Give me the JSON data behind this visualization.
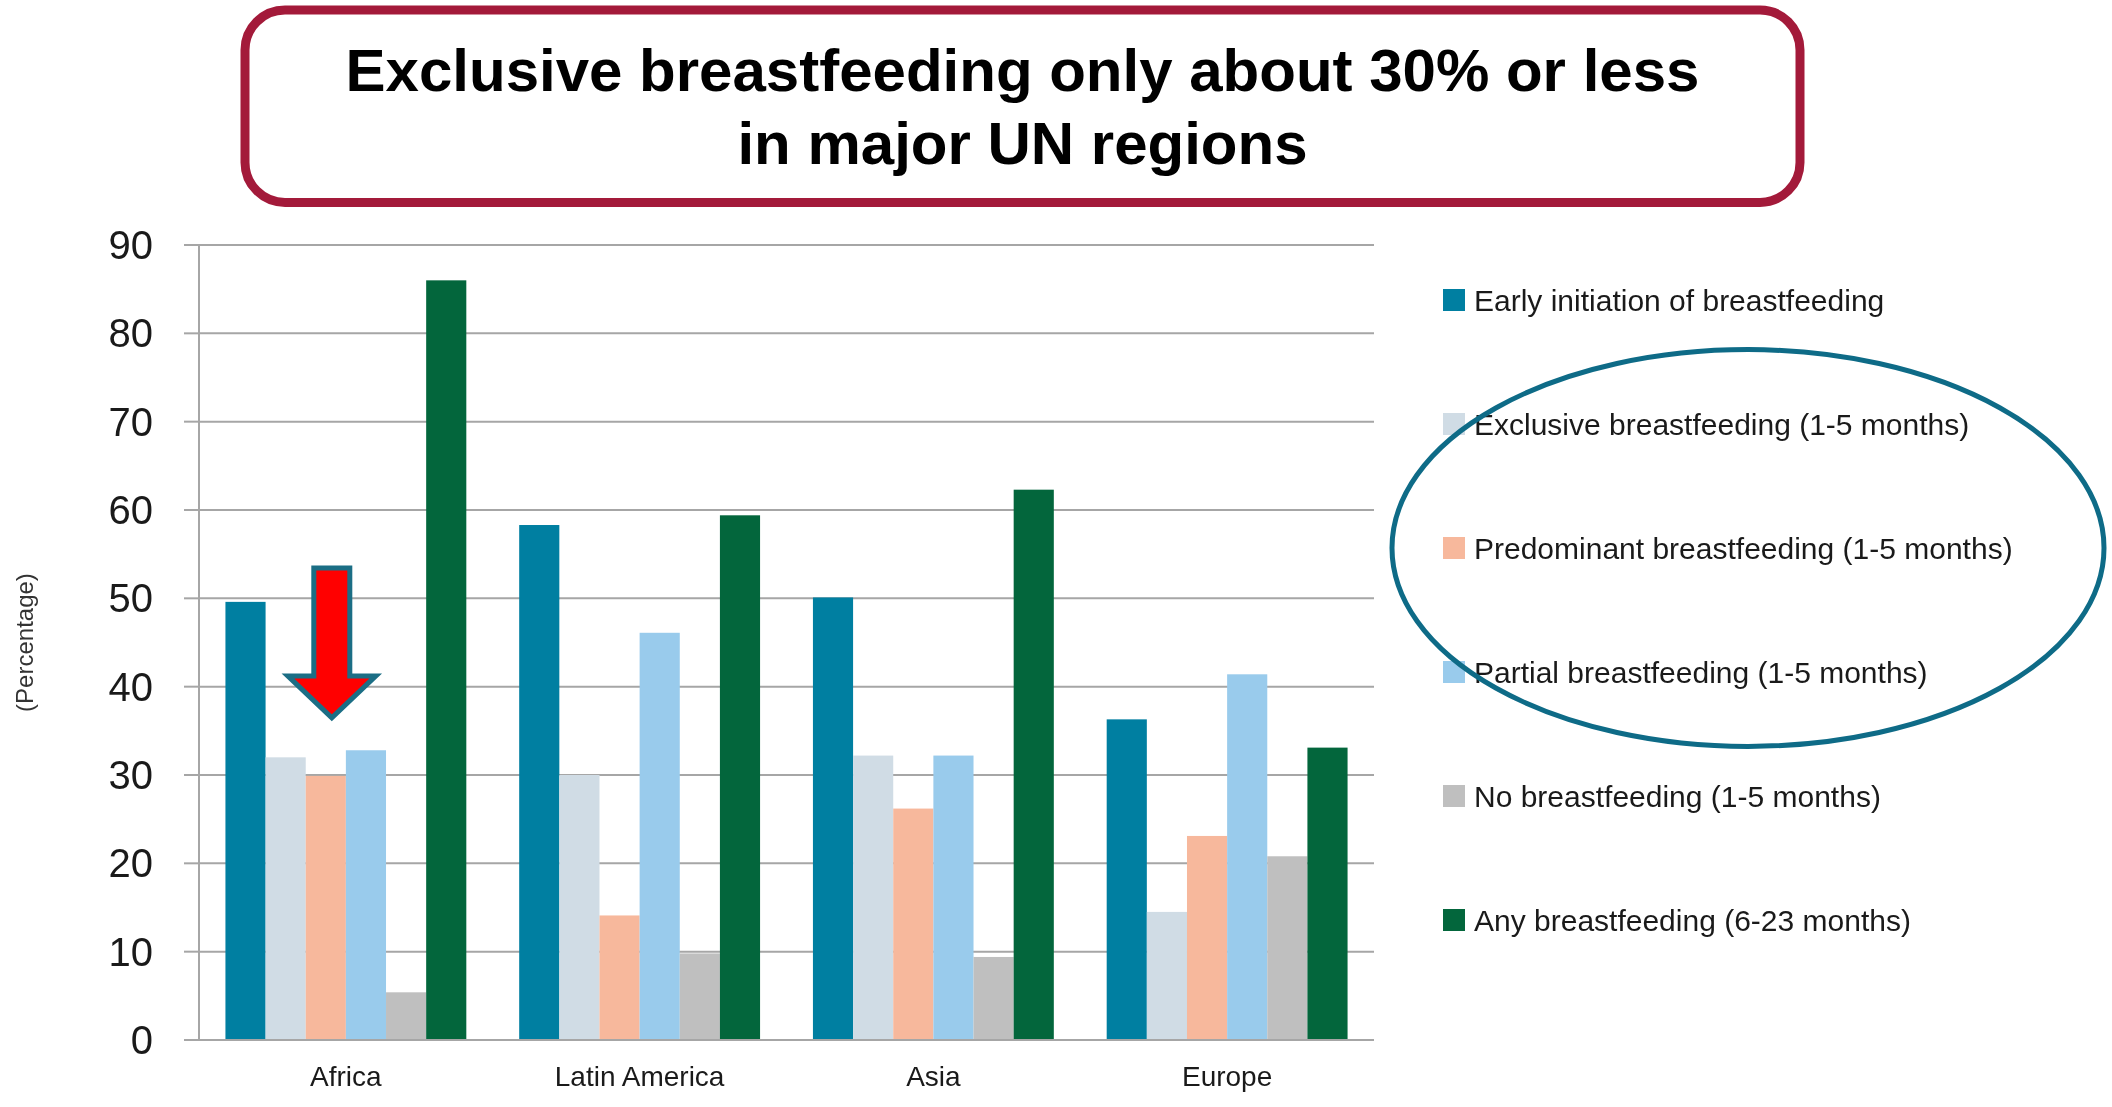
{
  "chart_data": {
    "type": "bar",
    "title": "Exclusive breastfeeding only about 30% or less in major UN regions",
    "ylabel": "(Percentage)",
    "categories": [
      "Africa",
      "Latin America",
      "Asia",
      "Europe"
    ],
    "series": [
      {
        "name": "Early initiation of breastfeeding",
        "color": "#007fa1",
        "values": [
          49.6,
          58.3,
          50.1,
          36.3
        ]
      },
      {
        "name": "Exclusive breastfeeding (1-5 months)",
        "color": "#d0dce5",
        "values": [
          32.0,
          30.0,
          32.2,
          14.5
        ]
      },
      {
        "name": "Predominant breastfeeding (1-5 months)",
        "color": "#f7b89c",
        "values": [
          29.9,
          14.1,
          26.2,
          23.1
        ]
      },
      {
        "name": "Partial breastfeeding (1-5 months)",
        "color": "#99cbec",
        "values": [
          32.8,
          46.1,
          32.2,
          41.4
        ]
      },
      {
        "name": "No breastfeeding (1-5 months)",
        "color": "#bfbfbf",
        "values": [
          5.4,
          9.8,
          9.4,
          20.8
        ]
      },
      {
        "name": "Any breastfeeding (6-23 months)",
        "color": "#03663c",
        "values": [
          86,
          59.4,
          62.3,
          33.1
        ]
      }
    ],
    "ylim": [
      0,
      90
    ],
    "yticks": [
      0,
      10,
      20,
      30,
      40,
      50,
      60,
      70,
      80,
      90
    ],
    "grid": "y",
    "legend": "right"
  }
}
